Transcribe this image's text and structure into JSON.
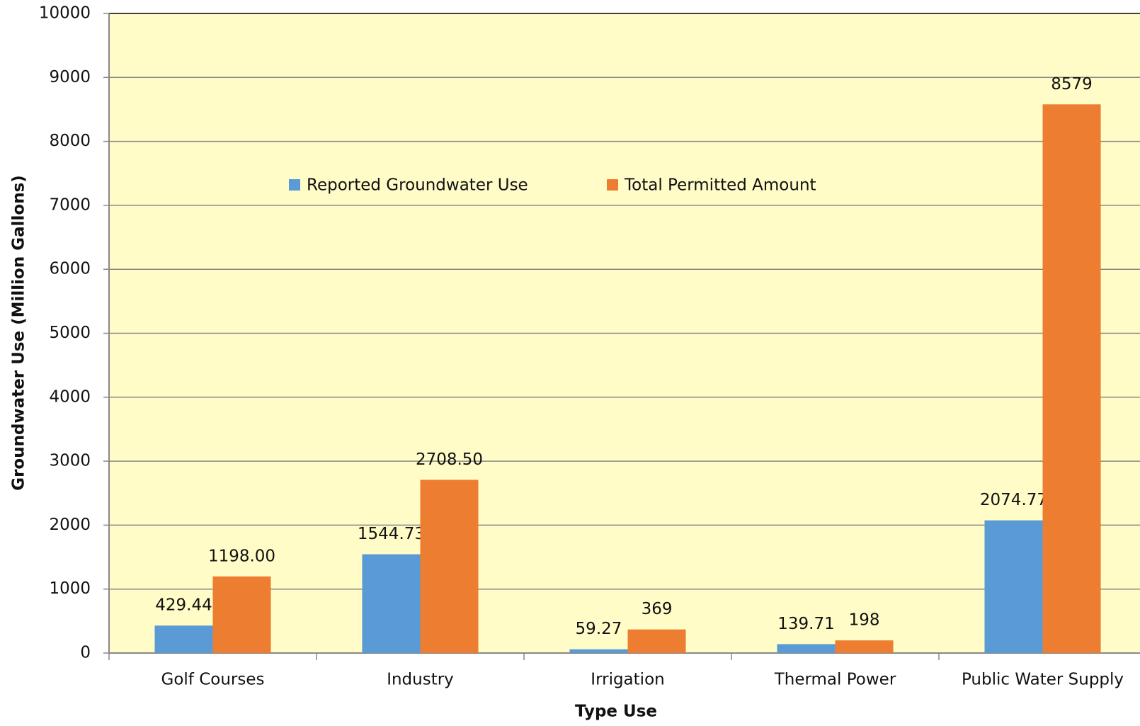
{
  "chart_data": {
    "type": "bar",
    "x_label": "Type Use",
    "y_label": "Groundwater Use (Million Gallons)",
    "categories": [
      "Golf Courses",
      "Industry",
      "Irrigation",
      "Thermal Power",
      "Public Water Supply"
    ],
    "series": [
      {
        "name": "Reported Groundwater Use",
        "color": "#5b9bd5",
        "values": [
          429.44,
          1544.73,
          59.27,
          139.71,
          2074.77
        ],
        "value_labels": [
          "429.44",
          "1544.73",
          "59.27",
          "139.71",
          "2074.77"
        ]
      },
      {
        "name": "Total Permitted Amount",
        "color": "#ed7d31",
        "values": [
          1198,
          2708.5,
          369,
          198,
          8579
        ],
        "value_labels": [
          "1198.00",
          "2708.50",
          "369",
          "198",
          "8579"
        ]
      }
    ],
    "ylim": [
      0,
      10000
    ],
    "yticks": [
      0,
      1000,
      2000,
      3000,
      4000,
      5000,
      6000,
      7000,
      8000,
      9000,
      10000
    ],
    "grid": true,
    "plot_background": "#fffcc8"
  }
}
